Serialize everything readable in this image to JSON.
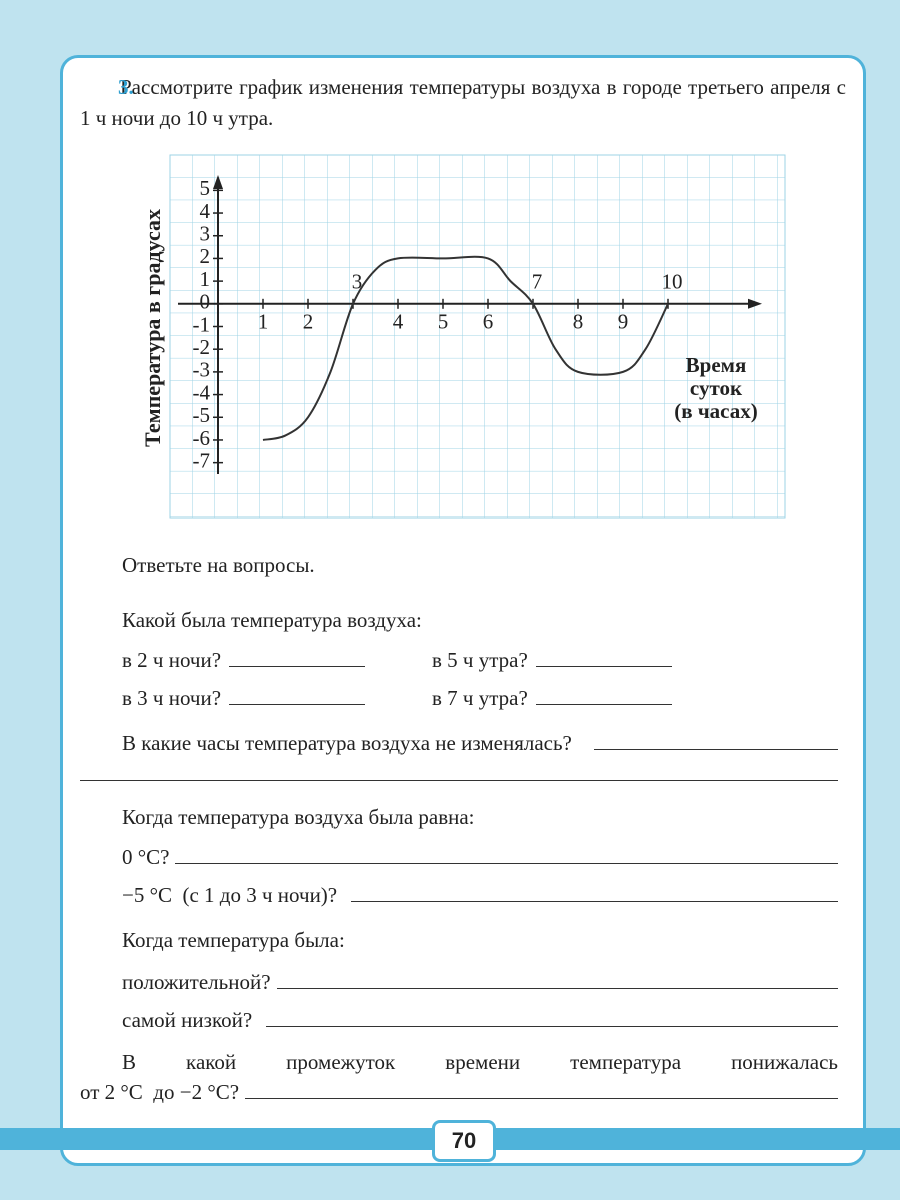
{
  "task": {
    "number": "3.",
    "text": "Рассмотрите график изменения температуры воздуха в городе третьего апреля с 1 ч ночи до 10 ч утра."
  },
  "chart_data": {
    "type": "line",
    "y_label": "Температура в градусах",
    "x_label_lines": [
      "Время",
      "суток",
      "(в часах)"
    ],
    "x": [
      1,
      1.5,
      2,
      2.5,
      3,
      3.5,
      4,
      5,
      6,
      6.5,
      7,
      7.5,
      8,
      9,
      9.5,
      10
    ],
    "values": [
      -6,
      -5.8,
      -5,
      -3,
      0,
      1.5,
      2,
      2,
      2,
      1,
      0,
      -2,
      -3,
      -3,
      -2,
      0
    ],
    "color": "#333333",
    "xlim": [
      0,
      12
    ],
    "ylim": [
      -7.5,
      5.5
    ],
    "xticks": [
      1,
      2,
      3,
      4,
      5,
      6,
      7,
      8,
      9,
      10
    ],
    "yticks": [
      5,
      4,
      3,
      2,
      1,
      0,
      -1,
      -2,
      -3,
      -4,
      -5,
      -6,
      -7
    ]
  },
  "questions": {
    "intro": "Ответьте на вопросы.",
    "q1": "Какой была температура воздуха:",
    "q1a": "в 2 ч ночи?",
    "q1b": "в 5 ч утра?",
    "q1c": "в 3 ч ночи?",
    "q1d": "в 7 ч утра?",
    "q2": "В какие часы температура воздуха не изменялась?",
    "q3": "Когда температура воздуха была равна:",
    "q3a": "0 °С?",
    "q3b": "−5 °С  (с 1 до 3 ч ночи)?",
    "q4": "Когда температура была:",
    "q4a": "положительной?",
    "q4b": "самой низкой?",
    "q5a": "В какой промежуток времени температура понижалась",
    "q5b": "от 2 °С  до −2 °С?"
  },
  "page_number": "70"
}
